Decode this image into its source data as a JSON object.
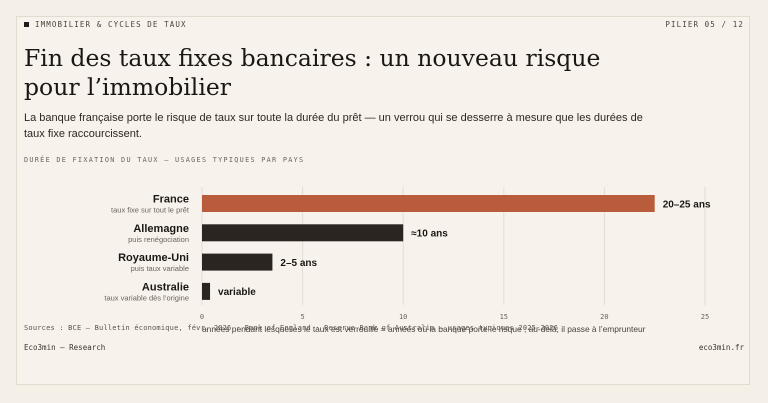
{
  "header": {
    "kicker": "IMMOBILIER & CYCLES DE TAUX",
    "pager": "PILIER 05 / 12"
  },
  "title": "Fin des taux fixes bancaires : un nouveau risque pour l’immobilier",
  "subtitle": "La banque française porte le risque de taux sur toute la durée du prêt — un verrou qui se desserre à mesure que les durées de taux fixe raccourcissent.",
  "chart_label": "DURÉE DE FIXATION DU TAUX — USAGES TYPIQUES PAR PAYS",
  "colors": {
    "highlight": "#b85c3c",
    "dark": "#2a2520",
    "grid": "#e3ddd2"
  },
  "chart_data": {
    "type": "bar",
    "orientation": "horizontal",
    "categories": [
      "France",
      "Allemagne",
      "Royaume-Uni",
      "Australie"
    ],
    "sublabels": [
      "taux fixe sur tout le prêt",
      "puis renégociation",
      "puis taux variable",
      "taux variable dès l’origine"
    ],
    "values": [
      22.5,
      10,
      3.5,
      0.4
    ],
    "data_labels": [
      "20–25 ans",
      "≈10 ans",
      "2–5 ans",
      "variable"
    ],
    "highlight_index": 0,
    "xlim": [
      0,
      25
    ],
    "xticks": [
      0,
      5,
      10,
      15,
      20,
      25
    ],
    "xlabel": "années pendant lesquelles le taux est verrouillé = années où la banque porte le risque ; au-delà, il passe à l’emprunteur",
    "grid": true
  },
  "sources": "Sources : BCE — Bulletin économique, févr. 2026 · Bank of England · Reserve Bank of Australia — usages typiques 2025-2026",
  "footer": {
    "left": "Eco3min — Research",
    "right": "eco3min.fr"
  }
}
